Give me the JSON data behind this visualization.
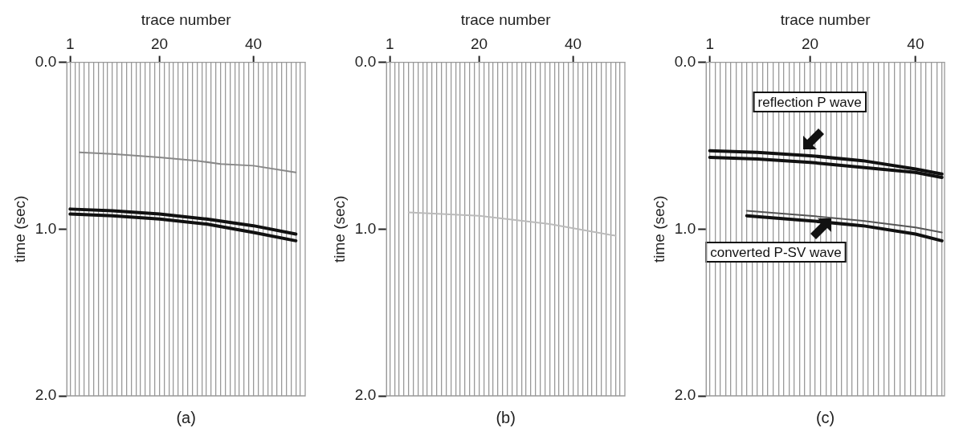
{
  "chart_data": [
    {
      "type": "line",
      "title": "(a)",
      "xlabel": "trace number",
      "ylabel": "time (sec)",
      "xlim": [
        0.3,
        51
      ],
      "ylim": [
        2,
        0
      ],
      "yticks": [
        {
          "value": 0,
          "label": "0.0"
        },
        {
          "value": 1,
          "label": "1.0"
        },
        {
          "value": 2,
          "label": "2.0"
        }
      ],
      "xticks": [
        1,
        {
          "value": 2,
          "label": null
        },
        {
          "value": 3,
          "label": null
        },
        {
          "value": 4,
          "label": null
        },
        {
          "value": 5,
          "label": null
        },
        {
          "value": 6,
          "label": null
        },
        {
          "value": 7,
          "label": null
        },
        {
          "value": 8,
          "label": null
        },
        {
          "value": 9,
          "label": null
        },
        {
          "value": 10,
          "label": null
        },
        {
          "value": 11,
          "label": null
        },
        {
          "value": 12,
          "label": null
        },
        {
          "value": 13,
          "label": null
        },
        {
          "value": 14,
          "label": null
        },
        {
          "value": 15,
          "label": null
        },
        {
          "value": 16,
          "label": null
        },
        {
          "value": 17,
          "label": null
        },
        {
          "value": 18,
          "label": null
        },
        {
          "value": 19,
          "label": null
        },
        20,
        {
          "value": 21,
          "label": null
        },
        {
          "value": 22,
          "label": null
        },
        {
          "value": 23,
          "label": null
        },
        {
          "value": 24,
          "label": null
        },
        {
          "value": 25,
          "label": null
        },
        {
          "value": 26,
          "label": null
        },
        {
          "value": 27,
          "label": null
        },
        {
          "value": 28,
          "label": null
        },
        {
          "value": 29,
          "label": null
        },
        {
          "value": 30,
          "label": null
        },
        {
          "value": 31,
          "label": null
        },
        {
          "value": 32,
          "label": null
        },
        {
          "value": 33,
          "label": null
        },
        {
          "value": 34,
          "label": null
        },
        {
          "value": 35,
          "label": null
        },
        {
          "value": 36,
          "label": null
        },
        {
          "value": 37,
          "label": null
        },
        {
          "value": 38,
          "label": null
        },
        {
          "value": 39,
          "label": null
        },
        40,
        {
          "value": 41,
          "label": null
        },
        {
          "value": 42,
          "label": null
        },
        {
          "value": 43,
          "label": null
        },
        {
          "value": 44,
          "label": null
        },
        {
          "value": 45,
          "label": null
        },
        {
          "value": 46,
          "label": null
        },
        {
          "value": 47,
          "label": null
        },
        {
          "value": 48,
          "label": null
        },
        {
          "value": 49,
          "label": null
        },
        {
          "value": 50,
          "label": null
        }
      ],
      "grid": "x",
      "legend": false,
      "marker": "none",
      "series": [
        {
          "color": "#888888",
          "x": [
            3,
            10,
            20,
            28,
            33,
            40,
            49
          ],
          "values": [
            0.54,
            0.55,
            0.57,
            0.59,
            0.61,
            0.62,
            0.66
          ]
        },
        {
          "color": "#111111",
          "x": [
            1,
            10,
            20,
            30,
            40,
            49
          ],
          "values": [
            0.88,
            0.89,
            0.91,
            0.94,
            0.98,
            1.03
          ]
        },
        {
          "color": "#111111",
          "x": [
            1,
            10,
            20,
            30,
            40,
            49
          ],
          "values": [
            0.91,
            0.92,
            0.94,
            0.97,
            1.02,
            1.07
          ]
        }
      ]
    },
    {
      "type": "line",
      "title": "(b)",
      "xlabel": "trace number",
      "ylabel": "time (sec)",
      "xlim": [
        0.3,
        51
      ],
      "ylim": [
        2,
        0
      ],
      "yticks": [
        {
          "value": 0,
          "label": "0.0"
        },
        {
          "value": 1,
          "label": "1.0"
        },
        {
          "value": 2,
          "label": "2.0"
        }
      ],
      "xticks": [
        1,
        {
          "value": 2,
          "label": null
        },
        {
          "value": 3,
          "label": null
        },
        {
          "value": 4,
          "label": null
        },
        {
          "value": 5,
          "label": null
        },
        {
          "value": 6,
          "label": null
        },
        {
          "value": 7,
          "label": null
        },
        {
          "value": 8,
          "label": null
        },
        {
          "value": 9,
          "label": null
        },
        {
          "value": 10,
          "label": null
        },
        {
          "value": 11,
          "label": null
        },
        {
          "value": 12,
          "label": null
        },
        {
          "value": 13,
          "label": null
        },
        {
          "value": 14,
          "label": null
        },
        {
          "value": 15,
          "label": null
        },
        {
          "value": 16,
          "label": null
        },
        {
          "value": 17,
          "label": null
        },
        {
          "value": 18,
          "label": null
        },
        {
          "value": 19,
          "label": null
        },
        20,
        {
          "value": 21,
          "label": null
        },
        {
          "value": 22,
          "label": null
        },
        {
          "value": 23,
          "label": null
        },
        {
          "value": 24,
          "label": null
        },
        {
          "value": 25,
          "label": null
        },
        {
          "value": 26,
          "label": null
        },
        {
          "value": 27,
          "label": null
        },
        {
          "value": 28,
          "label": null
        },
        {
          "value": 29,
          "label": null
        },
        {
          "value": 30,
          "label": null
        },
        {
          "value": 31,
          "label": null
        },
        {
          "value": 32,
          "label": null
        },
        {
          "value": 33,
          "label": null
        },
        {
          "value": 34,
          "label": null
        },
        {
          "value": 35,
          "label": null
        },
        {
          "value": 36,
          "label": null
        },
        {
          "value": 37,
          "label": null
        },
        {
          "value": 38,
          "label": null
        },
        {
          "value": 39,
          "label": null
        },
        40,
        {
          "value": 41,
          "label": null
        },
        {
          "value": 42,
          "label": null
        },
        {
          "value": 43,
          "label": null
        },
        {
          "value": 44,
          "label": null
        },
        {
          "value": 45,
          "label": null
        },
        {
          "value": 46,
          "label": null
        },
        {
          "value": 47,
          "label": null
        },
        {
          "value": 48,
          "label": null
        },
        {
          "value": 49,
          "label": null
        },
        {
          "value": 50,
          "label": null
        }
      ],
      "grid": "x",
      "legend": false,
      "marker": "none",
      "series": [
        {
          "color": "#bbbbbb",
          "x": [
            5,
            20,
            35,
            49
          ],
          "values": [
            0.9,
            0.92,
            0.97,
            1.04
          ]
        }
      ]
    },
    {
      "type": "line",
      "title": "(c)",
      "xlabel": "trace number",
      "ylabel": "time (sec)",
      "xlim": [
        0.3,
        45.5
      ],
      "ylim": [
        2,
        0
      ],
      "yticks": [
        {
          "value": 0,
          "label": "0.0"
        },
        {
          "value": 1,
          "label": "1.0"
        },
        {
          "value": 2,
          "label": "2.0"
        }
      ],
      "xticks": [
        1,
        {
          "value": 2,
          "label": null
        },
        {
          "value": 3,
          "label": null
        },
        {
          "value": 4,
          "label": null
        },
        {
          "value": 5,
          "label": null
        },
        {
          "value": 6,
          "label": null
        },
        {
          "value": 7,
          "label": null
        },
        {
          "value": 8,
          "label": null
        },
        {
          "value": 9,
          "label": null
        },
        {
          "value": 10,
          "label": null
        },
        {
          "value": 11,
          "label": null
        },
        {
          "value": 12,
          "label": null
        },
        {
          "value": 13,
          "label": null
        },
        {
          "value": 14,
          "label": null
        },
        {
          "value": 15,
          "label": null
        },
        {
          "value": 16,
          "label": null
        },
        {
          "value": 17,
          "label": null
        },
        {
          "value": 18,
          "label": null
        },
        {
          "value": 19,
          "label": null
        },
        20,
        {
          "value": 21,
          "label": null
        },
        {
          "value": 22,
          "label": null
        },
        {
          "value": 23,
          "label": null
        },
        {
          "value": 24,
          "label": null
        },
        {
          "value": 25,
          "label": null
        },
        {
          "value": 26,
          "label": null
        },
        {
          "value": 27,
          "label": null
        },
        {
          "value": 28,
          "label": null
        },
        {
          "value": 29,
          "label": null
        },
        {
          "value": 30,
          "label": null
        },
        {
          "value": 31,
          "label": null
        },
        {
          "value": 32,
          "label": null
        },
        {
          "value": 33,
          "label": null
        },
        {
          "value": 34,
          "label": null
        },
        {
          "value": 35,
          "label": null
        },
        {
          "value": 36,
          "label": null
        },
        {
          "value": 37,
          "label": null
        },
        {
          "value": 38,
          "label": null
        },
        {
          "value": 39,
          "label": null
        },
        40,
        {
          "value": 41,
          "label": null
        },
        {
          "value": 42,
          "label": null
        },
        {
          "value": 43,
          "label": null
        },
        {
          "value": 44,
          "label": null
        },
        {
          "value": 45,
          "label": null
        }
      ],
      "grid": "x",
      "legend": false,
      "marker": "none",
      "annotations": [
        "reflection P wave",
        "converted P-SV wave"
      ],
      "series": [
        {
          "color": "#111111",
          "x": [
            1,
            10,
            20,
            30,
            40,
            45
          ],
          "values": [
            0.53,
            0.54,
            0.56,
            0.59,
            0.64,
            0.67
          ]
        },
        {
          "color": "#111111",
          "x": [
            1,
            10,
            20,
            30,
            40,
            45
          ],
          "values": [
            0.57,
            0.58,
            0.6,
            0.63,
            0.66,
            0.69
          ]
        },
        {
          "color": "#555555",
          "x": [
            8,
            20,
            30,
            40,
            45
          ],
          "values": [
            0.89,
            0.92,
            0.95,
            0.99,
            1.02
          ]
        },
        {
          "color": "#111111",
          "x": [
            8,
            20,
            30,
            40,
            45
          ],
          "values": [
            0.92,
            0.95,
            0.98,
            1.03,
            1.07
          ]
        }
      ]
    }
  ]
}
